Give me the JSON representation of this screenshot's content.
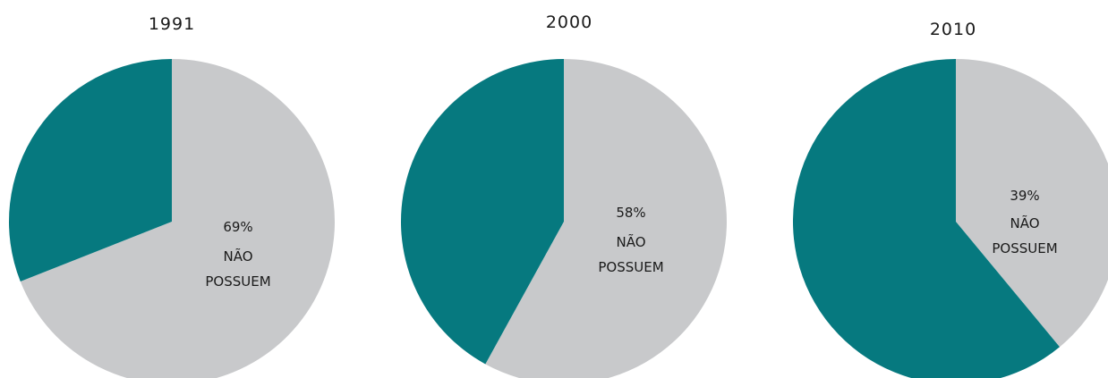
{
  "colors": {
    "possuem": "#06797f",
    "nao_possuem": "#c8c9cb"
  },
  "chart_data": [
    {
      "type": "pie",
      "title": "1991",
      "slices": [
        {
          "label": "NÃO POSSUEM",
          "value": 69,
          "value_label": "69%",
          "color": "#c8c9cb"
        },
        {
          "label": "",
          "value": 31,
          "color": "#06797f"
        }
      ]
    },
    {
      "type": "pie",
      "title": "2000",
      "slices": [
        {
          "label": "NÃO POSSUEM",
          "value": 58,
          "value_label": "58%",
          "color": "#c8c9cb"
        },
        {
          "label": "",
          "value": 42,
          "color": "#06797f"
        }
      ]
    },
    {
      "type": "pie",
      "title": "2010",
      "slices": [
        {
          "label": "NÃO POSSUEM",
          "value": 39,
          "value_label": "39%",
          "color": "#c8c9cb"
        },
        {
          "label": "",
          "value": 61,
          "color": "#06797f"
        }
      ]
    }
  ],
  "labels": {
    "nao": "NÃO",
    "possuem": "POSSUEM"
  }
}
